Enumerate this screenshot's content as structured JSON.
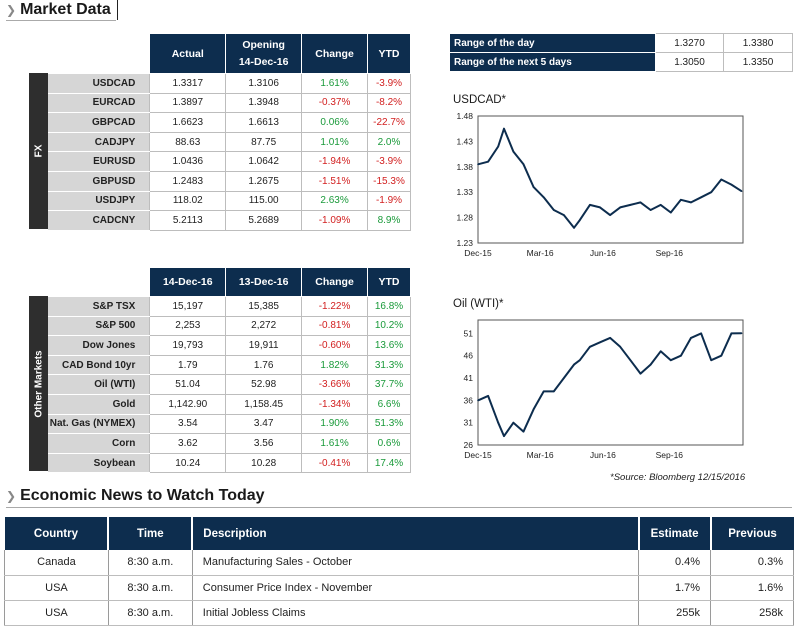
{
  "market_title": "Market Data",
  "fx": {
    "side_label": "FX",
    "headers": {
      "actual": "Actual",
      "opening_line1": "Opening",
      "opening_line2": "14-Dec-16",
      "change": "Change",
      "ytd": "YTD"
    },
    "rows": [
      {
        "name": "USDCAD",
        "actual": "1.3317",
        "opening": "1.3106",
        "change": "1.61%",
        "ytd": "-3.9%"
      },
      {
        "name": "EURCAD",
        "actual": "1.3897",
        "opening": "1.3948",
        "change": "-0.37%",
        "ytd": "-8.2%"
      },
      {
        "name": "GBPCAD",
        "actual": "1.6623",
        "opening": "1.6613",
        "change": "0.06%",
        "ytd": "-22.7%"
      },
      {
        "name": "CADJPY",
        "actual": "88.63",
        "opening": "87.75",
        "change": "1.01%",
        "ytd": "2.0%"
      },
      {
        "name": "EURUSD",
        "actual": "1.0436",
        "opening": "1.0642",
        "change": "-1.94%",
        "ytd": "-3.9%"
      },
      {
        "name": "GBPUSD",
        "actual": "1.2483",
        "opening": "1.2675",
        "change": "-1.51%",
        "ytd": "-15.3%"
      },
      {
        "name": "USDJPY",
        "actual": "118.02",
        "opening": "115.00",
        "change": "2.63%",
        "ytd": "-1.9%"
      },
      {
        "name": "CADCNY",
        "actual": "5.2113",
        "opening": "5.2689",
        "change": "-1.09%",
        "ytd": "8.9%"
      }
    ]
  },
  "other": {
    "side_label": "Other Markets",
    "headers": {
      "col1": "14-Dec-16",
      "col2": "13-Dec-16",
      "change": "Change",
      "ytd": "YTD"
    },
    "rows": [
      {
        "name": "S&P TSX",
        "v1": "15,197",
        "v2": "15,385",
        "change": "-1.22%",
        "ytd": "16.8%"
      },
      {
        "name": "S&P 500",
        "v1": "2,253",
        "v2": "2,272",
        "change": "-0.81%",
        "ytd": "10.2%"
      },
      {
        "name": "Dow Jones",
        "v1": "19,793",
        "v2": "19,911",
        "change": "-0.60%",
        "ytd": "13.6%"
      },
      {
        "name": "CAD Bond 10yr",
        "v1": "1.79",
        "v2": "1.76",
        "change": "1.82%",
        "ytd": "31.3%"
      },
      {
        "name": "Oil (WTI)",
        "v1": "51.04",
        "v2": "52.98",
        "change": "-3.66%",
        "ytd": "37.7%"
      },
      {
        "name": "Gold",
        "v1": "1,142.90",
        "v2": "1,158.45",
        "change": "-1.34%",
        "ytd": "6.6%"
      },
      {
        "name": "Nat. Gas (NYMEX)",
        "v1": "3.54",
        "v2": "3.47",
        "change": "1.90%",
        "ytd": "51.3%"
      },
      {
        "name": "Corn",
        "v1": "3.62",
        "v2": "3.56",
        "change": "1.61%",
        "ytd": "0.6%"
      },
      {
        "name": "Soybean",
        "v1": "10.24",
        "v2": "10.28",
        "change": "-0.41%",
        "ytd": "17.4%"
      }
    ]
  },
  "range": {
    "rows": [
      {
        "label": "Range of the day",
        "low": "1.3270",
        "high": "1.3380"
      },
      {
        "label": "Range of the next 5 days",
        "low": "1.3050",
        "high": "1.3350"
      }
    ]
  },
  "source_note": "*Source: Bloomberg  12/15/2016",
  "colors": {
    "header_navy": "#0d2d4e",
    "positive": "#1a9a3a",
    "negative": "#d21f1f",
    "line": "#0d2d4e"
  },
  "chart_data": [
    {
      "type": "line",
      "title": "USDCAD*",
      "x_ticks": [
        "Dec-15",
        "Mar-16",
        "Jun-16",
        "Sep-16"
      ],
      "y_ticks": [
        "1.48",
        "1.43",
        "1.38",
        "1.33",
        "1.28",
        "1.23"
      ],
      "ylim": [
        1.23,
        1.48
      ],
      "x": [
        "2015-12-15",
        "2015-12-29",
        "2016-01-12",
        "2016-01-20",
        "2016-02-02",
        "2016-02-16",
        "2016-03-01",
        "2016-03-15",
        "2016-03-29",
        "2016-04-12",
        "2016-04-26",
        "2016-05-04",
        "2016-05-18",
        "2016-06-01",
        "2016-06-15",
        "2016-06-29",
        "2016-07-13",
        "2016-07-27",
        "2016-08-10",
        "2016-08-24",
        "2016-09-07",
        "2016-09-21",
        "2016-10-05",
        "2016-10-19",
        "2016-11-02",
        "2016-11-16",
        "2016-11-30",
        "2016-12-14"
      ],
      "values": [
        1.385,
        1.39,
        1.42,
        1.455,
        1.41,
        1.385,
        1.34,
        1.32,
        1.295,
        1.285,
        1.26,
        1.275,
        1.305,
        1.3,
        1.285,
        1.3,
        1.305,
        1.31,
        1.295,
        1.305,
        1.29,
        1.315,
        1.31,
        1.32,
        1.33,
        1.355,
        1.345,
        1.332
      ]
    },
    {
      "type": "line",
      "title": "Oil (WTI)*",
      "x_ticks": [
        "Dec-15",
        "Mar-16",
        "Jun-16",
        "Sep-16"
      ],
      "y_ticks": [
        "51",
        "46",
        "41",
        "36",
        "31",
        "26"
      ],
      "ylim": [
        26,
        54
      ],
      "x": [
        "2015-12-15",
        "2015-12-29",
        "2016-01-12",
        "2016-01-20",
        "2016-02-02",
        "2016-02-16",
        "2016-03-01",
        "2016-03-15",
        "2016-03-29",
        "2016-04-12",
        "2016-04-26",
        "2016-05-04",
        "2016-05-18",
        "2016-06-01",
        "2016-06-15",
        "2016-06-29",
        "2016-07-13",
        "2016-07-27",
        "2016-08-10",
        "2016-08-24",
        "2016-09-07",
        "2016-09-21",
        "2016-10-05",
        "2016-10-19",
        "2016-11-02",
        "2016-11-16",
        "2016-11-30",
        "2016-12-14"
      ],
      "values": [
        36,
        37,
        31,
        28,
        31,
        29,
        34,
        38,
        38,
        41,
        44,
        45,
        48,
        49,
        50,
        48,
        45,
        42,
        44,
        47,
        45,
        46,
        50,
        51,
        45,
        46,
        51,
        51.04
      ]
    }
  ],
  "news": {
    "title": "Economic News to Watch Today",
    "headers": {
      "country": "Country",
      "time": "Time",
      "description": "Description",
      "estimate": "Estimate",
      "previous": "Previous"
    },
    "rows": [
      {
        "country": "Canada",
        "time": "8:30 a.m.",
        "description": "Manufacturing Sales - October",
        "estimate": "0.4%",
        "previous": "0.3%"
      },
      {
        "country": "USA",
        "time": "8:30 a.m.",
        "description": "Consumer Price Index - November",
        "estimate": "1.7%",
        "previous": "1.6%"
      },
      {
        "country": "USA",
        "time": "8:30 a.m.",
        "description": "Initial Jobless Claims",
        "estimate": "255k",
        "previous": "258k"
      }
    ]
  }
}
